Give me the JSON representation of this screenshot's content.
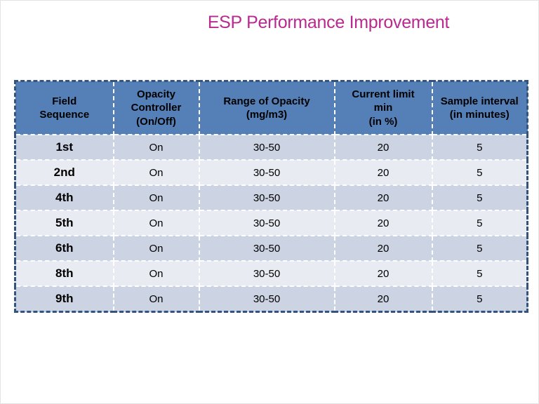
{
  "title": "ESP Performance Improvement",
  "colors": {
    "title": "#b92a90",
    "header_bg": "#5580b7",
    "row_dark": "#ccd3e3",
    "row_light": "#e9ebf2",
    "outer_border": "#35537f"
  },
  "table": {
    "columns": [
      "Field\nSequence",
      "Opacity\nController\n(On/Off)",
      "Range of Opacity\n(mg/m3)",
      "Current limit\nmin\n(in %)",
      "Sample interval\n(in minutes)"
    ],
    "rows": [
      [
        "1st",
        "On",
        "30-50",
        "20",
        "5"
      ],
      [
        "2nd",
        "On",
        "30-50",
        "20",
        "5"
      ],
      [
        "4th",
        "On",
        "30-50",
        "20",
        "5"
      ],
      [
        "5th",
        "On",
        "30-50",
        "20",
        "5"
      ],
      [
        "6th",
        "On",
        "30-50",
        "20",
        "5"
      ],
      [
        "8th",
        "On",
        "30-50",
        "20",
        "5"
      ],
      [
        "9th",
        "On",
        "30-50",
        "20",
        "5"
      ]
    ]
  }
}
